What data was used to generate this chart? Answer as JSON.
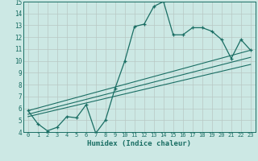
{
  "xlabel": "Humidex (Indice chaleur)",
  "bg_color": "#cce8e4",
  "line_color": "#1a6e64",
  "grid_color": "#b8c8c4",
  "xlim": [
    -0.5,
    23.5
  ],
  "ylim": [
    4,
    15
  ],
  "xticks": [
    0,
    1,
    2,
    3,
    4,
    5,
    6,
    7,
    8,
    9,
    10,
    11,
    12,
    13,
    14,
    15,
    16,
    17,
    18,
    19,
    20,
    21,
    22,
    23
  ],
  "yticks": [
    4,
    5,
    6,
    7,
    8,
    9,
    10,
    11,
    12,
    13,
    14,
    15
  ],
  "line1_x": [
    0,
    1,
    2,
    3,
    4,
    5,
    6,
    7,
    8,
    9,
    10,
    11,
    12,
    13,
    14,
    15,
    16,
    17,
    18,
    19,
    20,
    21,
    22,
    23
  ],
  "line1_y": [
    5.8,
    4.7,
    4.1,
    4.4,
    5.3,
    5.2,
    6.3,
    3.9,
    5.0,
    7.7,
    10.0,
    12.9,
    13.1,
    14.6,
    15.0,
    12.2,
    12.2,
    12.8,
    12.8,
    12.5,
    11.8,
    10.2,
    11.8,
    10.9
  ],
  "line2_x": [
    0,
    23
  ],
  "line2_y": [
    5.8,
    10.9
  ],
  "line3_x": [
    0,
    23
  ],
  "line3_y": [
    5.5,
    10.3
  ],
  "line4_x": [
    0,
    23
  ],
  "line4_y": [
    5.3,
    9.7
  ]
}
